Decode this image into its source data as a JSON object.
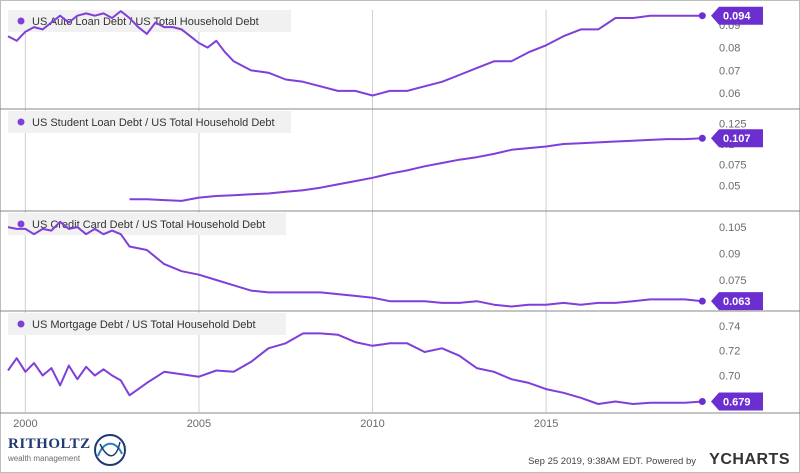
{
  "chart_data": [
    {
      "type": "line",
      "legend": "US Auto Loan Debt / US Total Household Debt",
      "latest": "0.094",
      "yticks": [
        "0.09",
        "0.08",
        "0.07",
        "0.06"
      ],
      "tick_values": [
        0.09,
        0.08,
        0.07,
        0.06
      ],
      "ylim": [
        0.0535,
        0.0965
      ],
      "x": [
        1999.5,
        1999.75,
        2000.0,
        2000.25,
        2000.5,
        2000.75,
        2001.0,
        2001.25,
        2001.5,
        2001.75,
        2002.0,
        2002.25,
        2002.5,
        2002.75,
        2003.0,
        2003.25,
        2003.5,
        2003.75,
        2004.0,
        2004.25,
        2004.5,
        2004.75,
        2005.0,
        2005.25,
        2005.5,
        2005.75,
        2006.0,
        2006.5,
        2007.0,
        2007.5,
        2008.0,
        2008.5,
        2009.0,
        2009.5,
        2010.0,
        2010.5,
        2011.0,
        2011.5,
        2012.0,
        2012.5,
        2013.0,
        2013.5,
        2014.0,
        2014.5,
        2015.0,
        2015.5,
        2016.0,
        2016.5,
        2017.0,
        2017.5,
        2018.0,
        2018.5,
        2019.0,
        2019.5
      ],
      "y": [
        0.085,
        0.083,
        0.087,
        0.089,
        0.088,
        0.091,
        0.094,
        0.091,
        0.094,
        0.095,
        0.094,
        0.095,
        0.093,
        0.096,
        0.093,
        0.089,
        0.086,
        0.091,
        0.089,
        0.089,
        0.088,
        0.085,
        0.082,
        0.08,
        0.083,
        0.078,
        0.074,
        0.07,
        0.069,
        0.066,
        0.065,
        0.063,
        0.061,
        0.061,
        0.059,
        0.061,
        0.061,
        0.063,
        0.065,
        0.068,
        0.071,
        0.074,
        0.074,
        0.078,
        0.081,
        0.085,
        0.088,
        0.088,
        0.093,
        0.093,
        0.094,
        0.094,
        0.094,
        0.094
      ]
    },
    {
      "type": "line",
      "legend": "US Student Loan Debt / US Total Household Debt",
      "latest": "0.107",
      "yticks": [
        "0.125",
        "0.1",
        "0.075",
        "0.05"
      ],
      "tick_values": [
        0.125,
        0.1,
        0.075,
        0.05
      ],
      "ylim": [
        0.02,
        0.14
      ],
      "x": [
        2003.0,
        2003.5,
        2004.0,
        2004.5,
        2005.0,
        2005.5,
        2006.0,
        2006.5,
        2007.0,
        2007.5,
        2008.0,
        2008.5,
        2009.0,
        2009.5,
        2010.0,
        2010.5,
        2011.0,
        2011.5,
        2012.0,
        2012.5,
        2013.0,
        2013.5,
        2014.0,
        2014.5,
        2015.0,
        2015.5,
        2016.0,
        2016.5,
        2017.0,
        2017.5,
        2018.0,
        2018.5,
        2019.0,
        2019.5
      ],
      "y": [
        0.033,
        0.033,
        0.032,
        0.031,
        0.035,
        0.037,
        0.038,
        0.039,
        0.04,
        0.042,
        0.044,
        0.047,
        0.051,
        0.055,
        0.059,
        0.064,
        0.068,
        0.073,
        0.077,
        0.081,
        0.084,
        0.088,
        0.093,
        0.095,
        0.097,
        0.1,
        0.101,
        0.102,
        0.103,
        0.104,
        0.105,
        0.106,
        0.106,
        0.107
      ]
    },
    {
      "type": "line",
      "legend": "US Credit Card Debt / US Total Household Debt",
      "latest": "0.063",
      "yticks": [
        "0.105",
        "0.09",
        "0.075"
      ],
      "tick_values": [
        0.105,
        0.09,
        0.075
      ],
      "ylim": [
        0.058,
        0.113
      ],
      "x": [
        1999.5,
        1999.75,
        2000.0,
        2000.25,
        2000.5,
        2000.75,
        2001.0,
        2001.25,
        2001.5,
        2001.75,
        2002.0,
        2002.25,
        2002.5,
        2002.75,
        2003.0,
        2003.5,
        2004.0,
        2004.5,
        2005.0,
        2005.5,
        2006.0,
        2006.5,
        2007.0,
        2007.5,
        2008.0,
        2008.5,
        2009.0,
        2009.5,
        2010.0,
        2010.5,
        2011.0,
        2011.5,
        2012.0,
        2012.5,
        2013.0,
        2013.5,
        2014.0,
        2014.5,
        2015.0,
        2015.5,
        2016.0,
        2016.5,
        2017.0,
        2017.5,
        2018.0,
        2018.5,
        2019.0,
        2019.5
      ],
      "y": [
        0.105,
        0.104,
        0.104,
        0.101,
        0.104,
        0.103,
        0.108,
        0.104,
        0.105,
        0.101,
        0.104,
        0.101,
        0.103,
        0.101,
        0.094,
        0.092,
        0.084,
        0.08,
        0.078,
        0.075,
        0.072,
        0.069,
        0.068,
        0.068,
        0.068,
        0.068,
        0.067,
        0.066,
        0.065,
        0.063,
        0.063,
        0.063,
        0.062,
        0.062,
        0.063,
        0.061,
        0.06,
        0.061,
        0.061,
        0.062,
        0.061,
        0.062,
        0.062,
        0.063,
        0.064,
        0.064,
        0.064,
        0.063
      ]
    },
    {
      "type": "line",
      "legend": "US Mortgage Debt / US Total Household Debt",
      "latest": "0.679",
      "yticks": [
        "0.74",
        "0.72",
        "0.70",
        "0.68"
      ],
      "tick_values": [
        0.74,
        0.72,
        0.7,
        0.68
      ],
      "ylim": [
        0.6705,
        0.7505
      ],
      "x": [
        1999.5,
        1999.75,
        2000.0,
        2000.25,
        2000.5,
        2000.75,
        2001.0,
        2001.25,
        2001.5,
        2001.75,
        2002.0,
        2002.25,
        2002.5,
        2002.75,
        2003.0,
        2003.5,
        2004.0,
        2004.5,
        2005.0,
        2005.5,
        2006.0,
        2006.5,
        2007.0,
        2007.5,
        2008.0,
        2008.5,
        2009.0,
        2009.5,
        2010.0,
        2010.5,
        2011.0,
        2011.5,
        2012.0,
        2012.5,
        2013.0,
        2013.5,
        2014.0,
        2014.5,
        2015.0,
        2015.5,
        2016.0,
        2016.5,
        2017.0,
        2017.5,
        2018.0,
        2018.5,
        2019.0,
        2019.5
      ],
      "y": [
        0.704,
        0.714,
        0.703,
        0.71,
        0.7,
        0.706,
        0.692,
        0.708,
        0.697,
        0.707,
        0.7,
        0.705,
        0.7,
        0.696,
        0.684,
        0.694,
        0.703,
        0.701,
        0.699,
        0.704,
        0.703,
        0.711,
        0.722,
        0.726,
        0.734,
        0.734,
        0.733,
        0.727,
        0.724,
        0.726,
        0.726,
        0.719,
        0.722,
        0.716,
        0.706,
        0.703,
        0.697,
        0.694,
        0.689,
        0.686,
        0.682,
        0.677,
        0.679,
        0.677,
        0.678,
        0.678,
        0.678,
        0.679
      ]
    }
  ],
  "x_axis": {
    "labels": [
      "2000",
      "2005",
      "2010",
      "2015"
    ],
    "values": [
      2000,
      2005,
      2010,
      2015
    ],
    "range": [
      1999.5,
      2019.75
    ]
  },
  "colors": {
    "line": "#7f3fd8",
    "flag": "#6b2fcf",
    "legend_bg": "#f1f1f1",
    "grid": "#cfcfcf"
  },
  "footer": {
    "brand_word": "RITHOLTZ",
    "brand_sub": "wealth management",
    "stamp": "Sep 25 2019, 9:38AM EDT.  Powered by",
    "ycharts": "YCHARTS"
  }
}
